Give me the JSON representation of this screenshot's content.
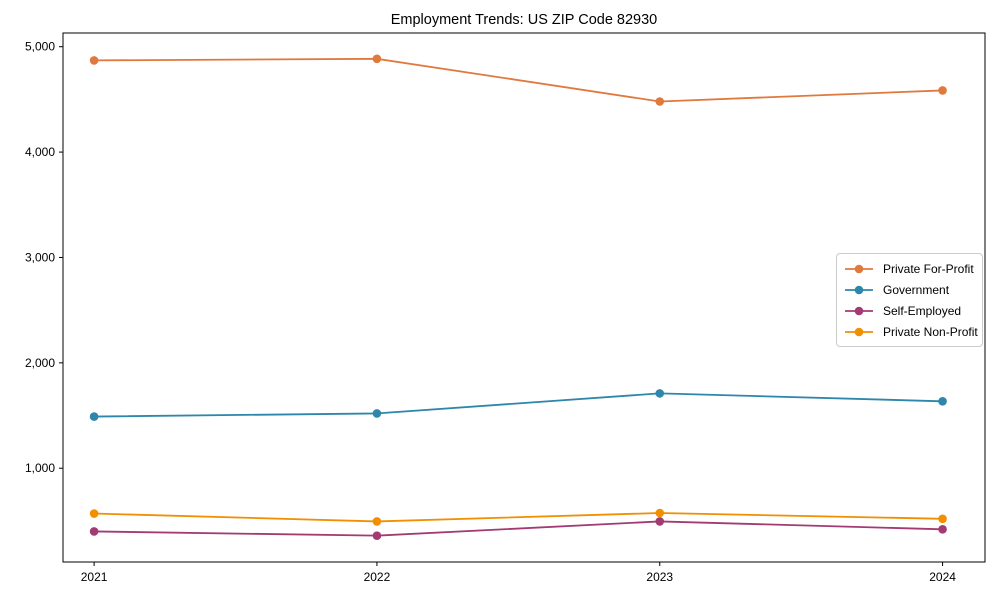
{
  "figure": {
    "title": "Employment Trends: US ZIP Code 82930"
  },
  "chart_data": {
    "type": "line",
    "title": "Employment Trends: US ZIP Code 82930",
    "x": [
      2021,
      2022,
      2023,
      2024
    ],
    "x_tick_labels": [
      "2021",
      "2022",
      "2023",
      "2024"
    ],
    "series": [
      {
        "name": "Private For-Profit",
        "color": "#E0793E",
        "values": [
          4870,
          4885,
          4480,
          4585
        ]
      },
      {
        "name": "Government",
        "color": "#2E86AB",
        "values": [
          1490,
          1520,
          1710,
          1635
        ]
      },
      {
        "name": "Self-Employed",
        "color": "#A23B72",
        "values": [
          400,
          360,
          495,
          420
        ]
      },
      {
        "name": "Private Non-Profit",
        "color": "#F18F01",
        "values": [
          570,
          495,
          575,
          520
        ]
      }
    ],
    "yticks": [
      1000,
      2000,
      3000,
      4000,
      5000
    ],
    "ytick_labels": [
      "1,000",
      "2,000",
      "3,000",
      "4,000",
      "5,000"
    ],
    "xlim": [
      2020.89,
      2024.15
    ],
    "ylim": [
      110,
      5130
    ],
    "grid": false,
    "legend_position": "center-right",
    "marker": "circle",
    "axes_color": "#000000",
    "background_color": "#ffffff"
  }
}
